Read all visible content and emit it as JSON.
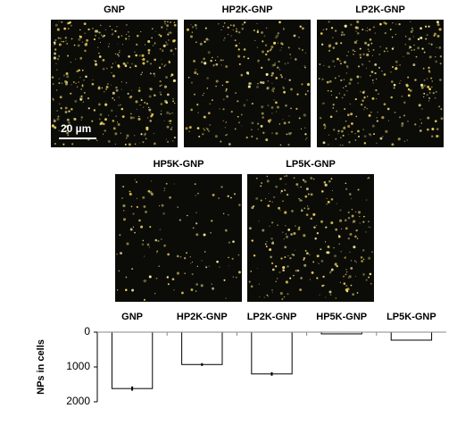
{
  "panels": [
    {
      "label": "GNP"
    },
    {
      "label": "HP2K-GNP"
    },
    {
      "label": "LP2K-GNP"
    },
    {
      "label": "HP5K-GNP"
    },
    {
      "label": "LP5K-GNP"
    }
  ],
  "scale_bar": "20 µm",
  "chart_data": {
    "type": "bar",
    "ylabel": "NPs in cells",
    "categories": [
      "GNP",
      "HP2K-GNP",
      "LP2K-GNP",
      "HP5K-GNP",
      "LP5K-GNP"
    ],
    "values": [
      1620,
      930,
      1200,
      50,
      230
    ],
    "errors": [
      60,
      40,
      50,
      10,
      10
    ],
    "color": "#ffffff",
    "ylim": [
      0,
      2000
    ],
    "yticks": [
      0,
      1000,
      2000
    ],
    "y_inverted": true
  }
}
